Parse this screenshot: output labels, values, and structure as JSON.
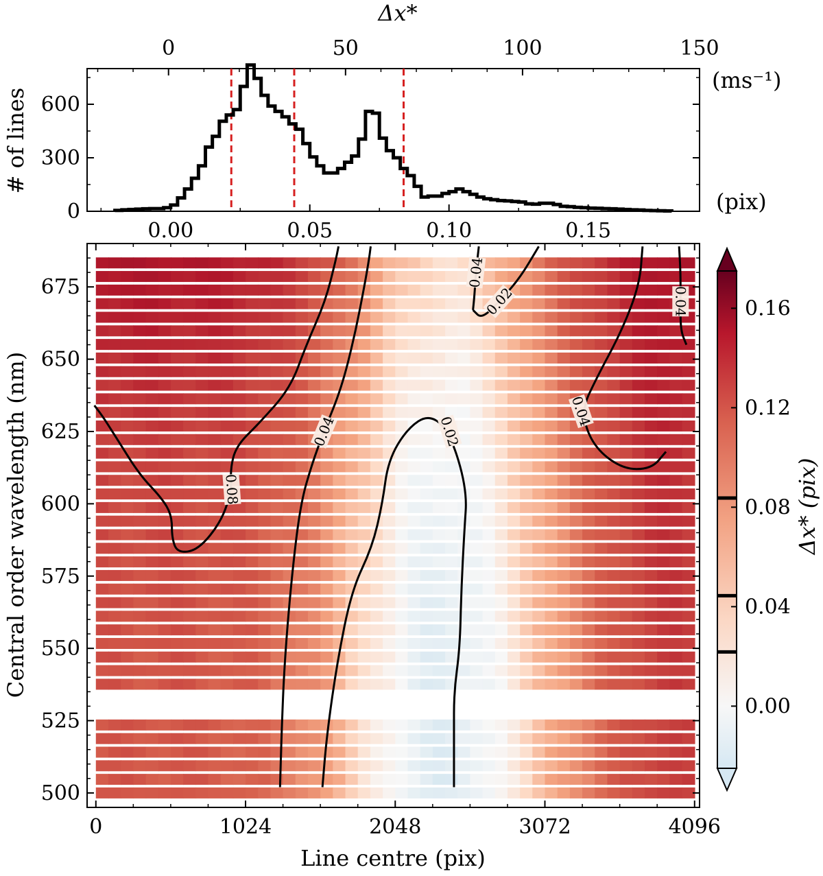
{
  "chart_data": [
    {
      "type": "histogram",
      "panel": "top",
      "title": "",
      "xlabel_top": "Δx*",
      "xlabel_bottom": "",
      "ylabel": "# of lines",
      "xlim_pix": [
        -0.03,
        0.19
      ],
      "xlim_ms": [
        -23,
        150
      ],
      "ylim": [
        0,
        800
      ],
      "yticks": [
        0,
        300,
        600
      ],
      "xticks_bottom": [
        0.0,
        0.05,
        0.1,
        0.15
      ],
      "xtick_labels_bottom": [
        "0.00",
        "0.05",
        "0.10",
        "0.15"
      ],
      "xticks_top": [
        0,
        50,
        100,
        150
      ],
      "xtick_labels_top": [
        "0",
        "50",
        "100",
        "150"
      ],
      "unit_labels": {
        "top": "(ms⁻¹)",
        "bottom": "(pix)"
      },
      "bin_edges": [
        -0.02,
        -0.0175,
        -0.015,
        -0.0125,
        -0.01,
        -0.0075,
        -0.005,
        -0.0025,
        0.0,
        0.0025,
        0.005,
        0.0075,
        0.01,
        0.0125,
        0.015,
        0.0175,
        0.02,
        0.0225,
        0.025,
        0.0275,
        0.03,
        0.0325,
        0.035,
        0.0375,
        0.04,
        0.0425,
        0.045,
        0.0475,
        0.05,
        0.0525,
        0.055,
        0.0575,
        0.06,
        0.0625,
        0.065,
        0.0675,
        0.07,
        0.0725,
        0.075,
        0.0775,
        0.08,
        0.0825,
        0.085,
        0.0875,
        0.09,
        0.0925,
        0.095,
        0.0975,
        0.1,
        0.1025,
        0.105,
        0.1075,
        0.11,
        0.1125,
        0.115,
        0.1175,
        0.12,
        0.1225,
        0.125,
        0.1275,
        0.13,
        0.1325,
        0.135,
        0.1375,
        0.14,
        0.1425,
        0.145,
        0.1475,
        0.15,
        0.1525,
        0.155,
        0.1575,
        0.16,
        0.1625,
        0.165,
        0.1675,
        0.17,
        0.1725,
        0.175,
        0.1775,
        0.18
      ],
      "counts": [
        5,
        8,
        10,
        12,
        14,
        15,
        15,
        20,
        35,
        75,
        125,
        185,
        255,
        360,
        420,
        505,
        540,
        570,
        700,
        820,
        745,
        650,
        590,
        560,
        530,
        490,
        460,
        380,
        305,
        255,
        215,
        215,
        240,
        275,
        310,
        405,
        560,
        550,
        410,
        340,
        300,
        240,
        200,
        140,
        80,
        85,
        85,
        100,
        110,
        125,
        110,
        95,
        80,
        70,
        65,
        60,
        58,
        55,
        52,
        42,
        40,
        45,
        45,
        38,
        28,
        26,
        22,
        20,
        18,
        17,
        15,
        14,
        12,
        10,
        8,
        7,
        5,
        4,
        3,
        2
      ],
      "dashed_lines": [
        0.0218,
        0.0444,
        0.0837
      ],
      "dashed_color": "#d62020"
    },
    {
      "type": "heatmap",
      "panel": "bottom",
      "title": "",
      "xlabel": "Line centre (pix)",
      "ylabel": "Central order wavelength (nm)",
      "xlim": [
        -60,
        4130
      ],
      "ylim": [
        495,
        690
      ],
      "xticks": [
        0,
        1024,
        2048,
        3072,
        4096
      ],
      "xtick_labels": [
        "0",
        "1024",
        "2048",
        "3072",
        "4096"
      ],
      "yticks": [
        500,
        525,
        550,
        575,
        600,
        625,
        650,
        675
      ],
      "ytick_labels": [
        "500",
        "525",
        "550",
        "575",
        "600",
        "625",
        "650",
        "675"
      ],
      "colormap": "RdBu_r",
      "color_range": [
        -0.025,
        0.175
      ],
      "colorbar": {
        "label": "Δx* (pix)",
        "ticks": [
          0.0,
          0.04,
          0.08,
          0.12,
          0.16
        ],
        "tick_labels": [
          "0.00",
          "0.04",
          "0.08",
          "0.12",
          "0.16"
        ],
        "marker_lines": [
          0.0218,
          0.0444,
          0.0837
        ],
        "extend": "both"
      },
      "contours": [
        {
          "level_label": "0.08",
          "points": [
            [
              -10,
              634
            ],
            [
              50,
              630
            ],
            [
              150,
              622
            ],
            [
              300,
              610
            ],
            [
              450,
              602
            ],
            [
              520,
              596
            ],
            [
              520,
              588
            ],
            [
              560,
              583
            ],
            [
              700,
              584
            ],
            [
              860,
              594
            ],
            [
              930,
              605
            ],
            [
              920,
              612
            ],
            [
              960,
              620
            ],
            [
              1120,
              628
            ],
            [
              1330,
              640
            ],
            [
              1440,
              655
            ],
            [
              1570,
              670
            ],
            [
              1640,
              684
            ],
            [
              1660,
              689
            ]
          ]
        },
        {
          "level_label": "0.04",
          "points": [
            [
              1260,
              502
            ],
            [
              1270,
              520
            ],
            [
              1290,
              545
            ],
            [
              1340,
              575
            ],
            [
              1400,
              600
            ],
            [
              1480,
              614
            ],
            [
              1560,
              625
            ],
            [
              1680,
              640
            ],
            [
              1770,
              658
            ],
            [
              1840,
              676
            ],
            [
              1870,
              685
            ],
            [
              1880,
              689
            ]
          ]
        },
        {
          "level_label": "0.04",
          "points": [
            [
              1550,
              502
            ],
            [
              1580,
              520
            ],
            [
              1650,
              545
            ],
            [
              1750,
              570
            ],
            [
              1890,
              585
            ],
            [
              1960,
              600
            ],
            [
              2000,
              615
            ],
            [
              2130,
              626
            ],
            [
              2280,
              631
            ],
            [
              2420,
              625
            ],
            [
              2540,
              605
            ],
            [
              2520,
              590
            ],
            [
              2500,
              570
            ],
            [
              2490,
              550
            ],
            [
              2450,
              535
            ],
            [
              2450,
              520
            ],
            [
              2450,
              502
            ]
          ]
        },
        {
          "level_label": "0.02",
          "points": [
            [
              2580,
              667
            ],
            [
              2590,
              672
            ],
            [
              2600,
              680
            ],
            [
              2620,
              689
            ]
          ]
        },
        {
          "level_label": "0.02",
          "points": [
            [
              2580,
              667
            ],
            [
              2640,
              664
            ],
            [
              2760,
              670
            ],
            [
              2900,
              678
            ],
            [
              3030,
              689
            ]
          ]
        },
        {
          "level_label": "0.04",
          "points": [
            [
              3740,
              689
            ],
            [
              3720,
              676
            ],
            [
              3600,
              660
            ],
            [
              3420,
              643
            ],
            [
              3320,
              632
            ],
            [
              3400,
              620
            ],
            [
              3600,
              612
            ],
            [
              3800,
              612
            ],
            [
              3900,
              618
            ]
          ]
        },
        {
          "level_label": "0.04",
          "points": [
            [
              3990,
              689
            ],
            [
              4000,
              680
            ],
            [
              4000,
              670
            ],
            [
              4000,
              660
            ],
            [
              4040,
              655
            ]
          ]
        }
      ],
      "contour_labels": [
        "0.08",
        "0.04",
        "0.02",
        "0.04",
        "0.02",
        "0.04",
        "0.04"
      ]
    }
  ]
}
